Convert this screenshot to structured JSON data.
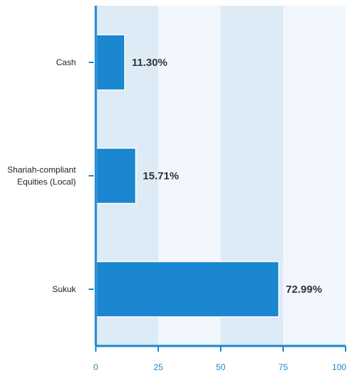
{
  "chart_data": {
    "type": "bar",
    "orientation": "horizontal",
    "categories": [
      [
        "Cash"
      ],
      [
        "Shariah-compliant",
        "Equities (Local)"
      ],
      [
        "Sukuk"
      ]
    ],
    "values": [
      11.3,
      15.71,
      72.99
    ],
    "value_labels": [
      "11.30%",
      "15.71%",
      "72.99%"
    ],
    "xlim": [
      0,
      100
    ],
    "x_ticks": [
      0,
      25,
      50,
      75,
      100
    ],
    "x_tick_labels": [
      "0",
      "25",
      "50",
      "75",
      "100"
    ],
    "title": "",
    "xlabel": "",
    "ylabel": "",
    "grid": "alternating vertical bands",
    "legend": "none"
  },
  "colors": {
    "bar": "#1a87d0",
    "bar_stroke": "#ffffff",
    "axis": "#1a87d0",
    "band_dark": "#dcebf6",
    "band_light": "#f1f7fc",
    "tick_text": "#1a87d0",
    "category_text": "#222222",
    "value_text": "#333333"
  }
}
